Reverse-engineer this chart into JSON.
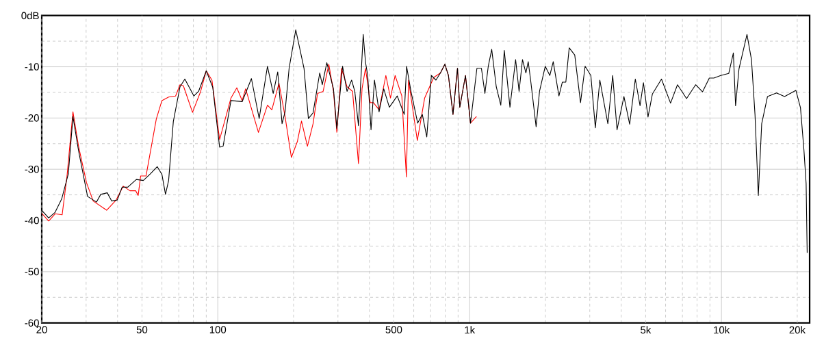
{
  "chart_data": {
    "type": "line",
    "log": "x",
    "grid": true,
    "marker": "none",
    "line_style": "solid",
    "xlim": [
      20,
      22400
    ],
    "ylim": [
      -60,
      0
    ],
    "xticks": [
      20,
      {
        "value": 30,
        "label": null
      },
      {
        "value": 40,
        "label": null
      },
      50,
      {
        "value": 60,
        "label": null
      },
      {
        "value": 70,
        "label": null
      },
      {
        "value": 80,
        "label": null
      },
      {
        "value": 90,
        "label": null
      },
      100,
      {
        "value": 200,
        "label": null
      },
      {
        "value": 300,
        "label": null
      },
      {
        "value": 400,
        "label": null
      },
      500,
      {
        "value": 600,
        "label": null
      },
      {
        "value": 700,
        "label": null
      },
      {
        "value": 800,
        "label": null
      },
      {
        "value": 900,
        "label": null
      },
      {
        "value": 1000,
        "label": "1k"
      },
      {
        "value": 2000,
        "label": null
      },
      {
        "value": 3000,
        "label": null
      },
      {
        "value": 4000,
        "label": null
      },
      {
        "value": 5000,
        "label": "5k"
      },
      {
        "value": 6000,
        "label": null
      },
      {
        "value": 7000,
        "label": null
      },
      {
        "value": 8000,
        "label": null
      },
      {
        "value": 9000,
        "label": null
      },
      {
        "value": 10000,
        "label": "10k"
      },
      {
        "value": 20000,
        "label": "20k"
      }
    ],
    "yticks": [
      {
        "value": 0,
        "label": "0dB"
      },
      {
        "value": -5,
        "label": null
      },
      -10,
      {
        "value": -15,
        "label": null
      },
      -20,
      {
        "value": -25,
        "label": null
      },
      -30,
      {
        "value": -35,
        "label": null
      },
      -40,
      {
        "value": -45,
        "label": null
      },
      -50,
      {
        "value": -55,
        "label": null
      },
      -60
    ],
    "series": [
      {
        "color": "#ff0000",
        "x": [
          20,
          21.3,
          22.6,
          24.1,
          25.2,
          26.6,
          28,
          30.1,
          32,
          36.2,
          39.5,
          42.1,
          44.8,
          47.2,
          48.3,
          49.4,
          51.9,
          57,
          60,
          63.8,
          68,
          70.8,
          73,
          79.4,
          85.5,
          90,
          94.8,
          101.7,
          112.8,
          119,
          125,
          129,
          145,
          157.5,
          164,
          175,
          185,
          196,
          207,
          215,
          227,
          239,
          249,
          262,
          276,
          288,
          297,
          310,
          326,
          343,
          362,
          374,
          386,
          403,
          415,
          437,
          465,
          485,
          506,
          538,
          561,
          572,
          620,
          663,
          720,
          766,
          798,
          824,
          859,
          895,
          914,
          963,
          1008,
          1065
        ],
        "values": [
          -38.6,
          -40.1,
          -38.7,
          -38.9,
          -31.3,
          -18.8,
          -25.5,
          -32.6,
          -36.2,
          -38.0,
          -36.0,
          -33.3,
          -34.2,
          -34.2,
          -35.1,
          -31.3,
          -31.3,
          -20.2,
          -16.6,
          -15.9,
          -15.7,
          -13.5,
          -13.7,
          -18.9,
          -14.8,
          -10.8,
          -12.6,
          -24.2,
          -16.1,
          -14.1,
          -16.6,
          -14.3,
          -22.8,
          -17.5,
          -18.4,
          -13.2,
          -19.7,
          -27.7,
          -24.6,
          -20.6,
          -25.5,
          -21.1,
          -15.2,
          -14.8,
          -9.5,
          -14.8,
          -22.8,
          -10.3,
          -13.9,
          -14.8,
          -28.9,
          -14.3,
          -10.3,
          -17.0,
          -17.0,
          -18.4,
          -11.7,
          -16.1,
          -11.7,
          -15.7,
          -31.5,
          -12.6,
          -24.4,
          -16.1,
          -12.1,
          -11.2,
          -9.5,
          -11.7,
          -19.3,
          -10.3,
          -17.9,
          -11.7,
          -21.0,
          -19.7
        ]
      },
      {
        "color": "#000000",
        "x": [
          20,
          21.3,
          22.6,
          24,
          25.5,
          26.6,
          28,
          30.4,
          33,
          34.3,
          36.4,
          37.9,
          39.9,
          41.7,
          43.9,
          47.5,
          50.6,
          54,
          57.5,
          60,
          62,
          63.8,
          66.6,
          70.8,
          74,
          80.4,
          83.9,
          90,
          95.5,
          101.7,
          105,
          112.8,
          125,
          136,
          146,
          157.5,
          166,
          173,
          180,
          185,
          192,
          204,
          220,
          229,
          239,
          254,
          260,
          271,
          288,
          297,
          313,
          326,
          340,
          350,
          362,
          378,
          386,
          394,
          406,
          419,
          437,
          456,
          480,
          516,
          550,
          562,
          585,
          622,
          649,
          676,
          705,
          735,
          766,
          798,
          824,
          859,
          895,
          914,
          963,
          1008,
          1069,
          1114,
          1150,
          1186,
          1224,
          1276,
          1330,
          1373,
          1446,
          1523,
          1572,
          1622,
          1673,
          1709,
          1747,
          1837,
          1895,
          1997,
          2082,
          2148,
          2263,
          2335,
          2410,
          2486,
          2615,
          2757,
          2875,
          3030,
          3157,
          3290,
          3540,
          3700,
          3850,
          4100,
          4320,
          4550,
          4750,
          4900,
          5110,
          5320,
          5780,
          6280,
          6690,
          7270,
          7900,
          8410,
          8950,
          9330,
          9940,
          10690,
          11150,
          11380,
          11740,
          12630,
          13160,
          13590,
          14010,
          14450,
          15240,
          16550,
          17810,
          19750,
          20600,
          21250,
          21690,
          21900
        ],
        "values": [
          -38.0,
          -39.5,
          -38.4,
          -35.8,
          -30.9,
          -19.7,
          -26.4,
          -35.3,
          -36.4,
          -34.9,
          -34.6,
          -36.2,
          -36.0,
          -33.5,
          -33.5,
          -32.0,
          -32.2,
          -30.9,
          -29.5,
          -31.0,
          -34.9,
          -32.2,
          -20.7,
          -13.9,
          -12.4,
          -15.7,
          -14.8,
          -10.8,
          -14.0,
          -25.7,
          -25.5,
          -16.6,
          -16.8,
          -12.3,
          -20.1,
          -9.9,
          -15.2,
          -11.0,
          -21.1,
          -18.8,
          -10.3,
          -2.8,
          -10.3,
          -20.1,
          -19.0,
          -11.2,
          -13.5,
          -9.2,
          -14.3,
          -22.0,
          -9.9,
          -14.8,
          -12.6,
          -14.8,
          -21.5,
          -3.7,
          -9.1,
          -11.7,
          -22.3,
          -12.6,
          -18.8,
          -14.3,
          -17.9,
          -15.7,
          -19.3,
          -9.9,
          -14.8,
          -21.0,
          -19.3,
          -23.7,
          -11.7,
          -12.6,
          -11.2,
          -9.5,
          -11.7,
          -19.3,
          -10.3,
          -17.9,
          -11.7,
          -21.0,
          -10.3,
          -10.3,
          -15.2,
          -9.9,
          -6.6,
          -13.9,
          -17.5,
          -6.8,
          -17.9,
          -8.6,
          -14.8,
          -8.6,
          -11.2,
          -9.0,
          -12.6,
          -21.7,
          -14.8,
          -9.9,
          -11.7,
          -9.0,
          -15.7,
          -13.0,
          -13.0,
          -6.3,
          -7.7,
          -17.0,
          -9.9,
          -11.7,
          -21.9,
          -12.6,
          -21.1,
          -11.7,
          -22.3,
          -15.8,
          -21.2,
          -12.4,
          -17.6,
          -13.1,
          -19.8,
          -15.3,
          -12.4,
          -17.1,
          -13.5,
          -16.2,
          -13.5,
          -14.9,
          -12.2,
          -12.2,
          -11.7,
          -11.3,
          -7.3,
          -17.6,
          -10.4,
          -3.7,
          -8.6,
          -19.3,
          -35.1,
          -21.1,
          -15.8,
          -15.1,
          -15.8,
          -14.6,
          -18.0,
          -26.1,
          -32.8,
          -46.3
        ]
      }
    ]
  }
}
